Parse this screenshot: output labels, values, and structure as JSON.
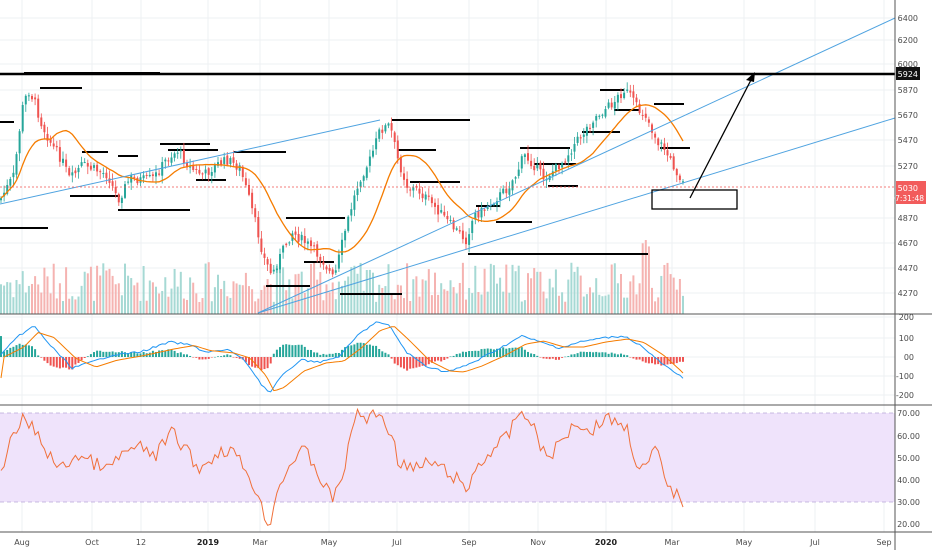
{
  "chart_data": {
    "type": "candlestick",
    "price_axis": {
      "ticks": [
        "6400",
        "6200",
        "6000",
        "5870",
        "5670",
        "5470",
        "5270",
        "4870",
        "4670",
        "4470",
        "4270"
      ],
      "range": [
        4170,
        6470
      ],
      "resistance_label": "5924",
      "last_price_label": "5030",
      "countdown_label": "07:31:48"
    },
    "time_axis": {
      "labels": [
        "Aug",
        "Oct",
        "12",
        "2019",
        "Mar",
        "May",
        "Jul",
        "Sep",
        "Nov",
        "2020",
        "Mar",
        "May",
        "Jul",
        "Sep"
      ],
      "bold_labels": [
        "2019",
        "2020"
      ]
    },
    "macd_axis": {
      "ticks": [
        "200",
        "100",
        "00",
        "-100",
        "-200"
      ],
      "range": [
        -210,
        210
      ]
    },
    "rsi_axis": {
      "ticks": [
        "70.00",
        "60.00",
        "50.00",
        "40.00",
        "30.00",
        "20.00"
      ],
      "range": [
        18,
        75
      ],
      "band": [
        30,
        70
      ]
    },
    "colors": {
      "up": "#26a69a",
      "down": "#ef5350",
      "ma": "#f57c00",
      "channel": "#4fa3e0",
      "rsi": "#f0703a",
      "rsi_band": "#efe3fb",
      "macd_line": "#2196f3",
      "signal_line": "#f57c00",
      "resistance": "#000000"
    }
  }
}
